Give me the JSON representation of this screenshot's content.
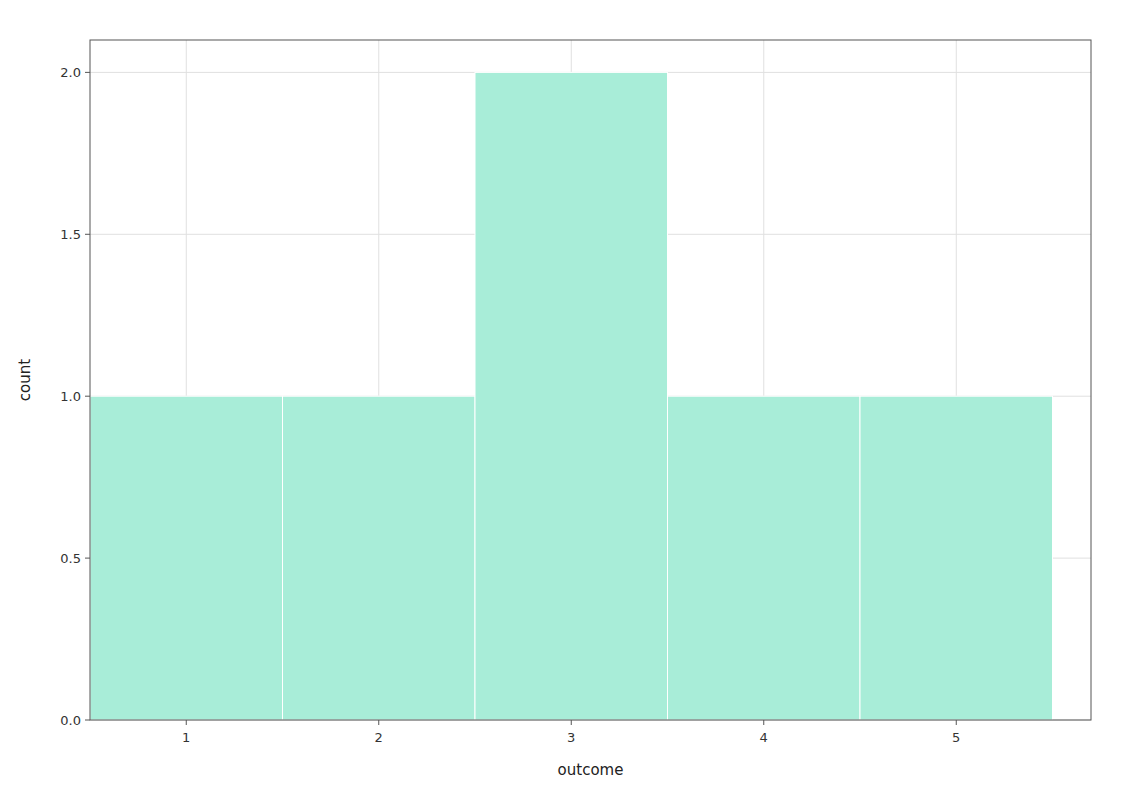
{
  "chart_data": {
    "type": "histogram",
    "xlabel": "outcome",
    "ylabel": "count",
    "bins": [
      0.5,
      1.5,
      2.5,
      3.5,
      4.5,
      5.5
    ],
    "values": [
      1,
      1,
      2,
      1,
      1
    ],
    "color": "#A8EDD8",
    "xlim": [
      0.5,
      5.7
    ],
    "ylim": [
      0.0,
      2.1
    ],
    "xticks": [
      1,
      2,
      3,
      4,
      5
    ],
    "yticks": [
      {
        "value": 0.0,
        "label": "0.0"
      },
      0.5,
      {
        "value": 1.0,
        "label": "1.0"
      },
      1.5,
      {
        "value": 2.0,
        "label": "2.0"
      }
    ],
    "grid": true
  }
}
